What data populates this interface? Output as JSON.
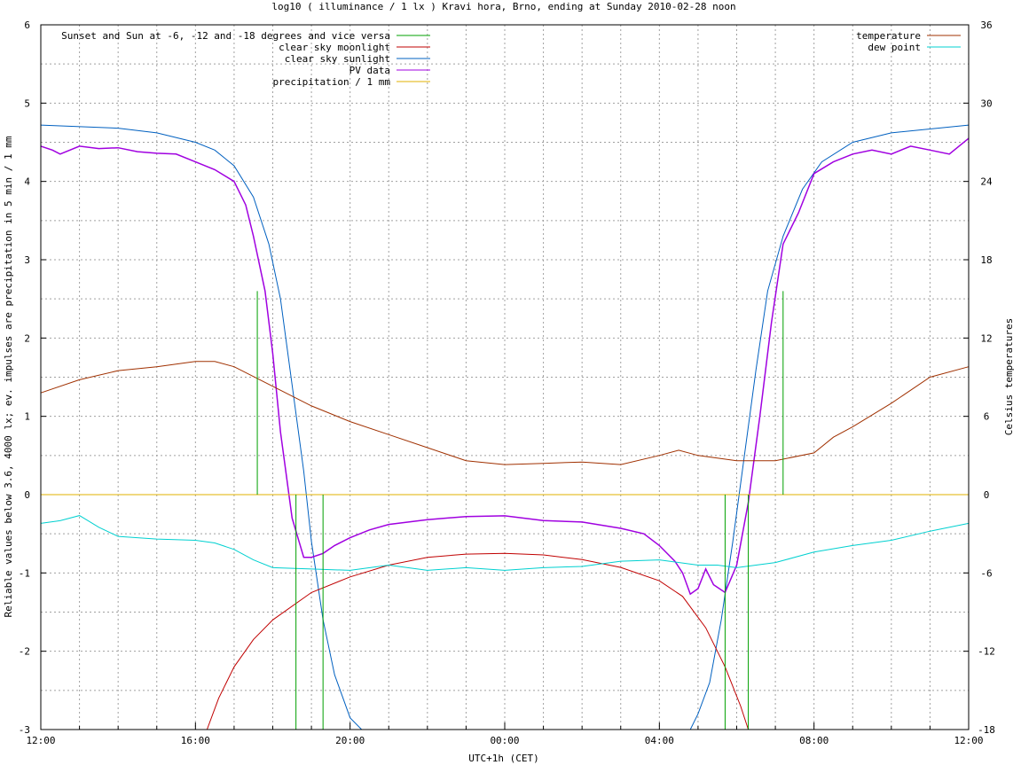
{
  "chart_data": {
    "type": "line",
    "title": "log10 ( illuminance / 1 lx ) Kravi hora, Brno, ending at Sunday 2010-02-28 noon",
    "xlabel": "UTC+1h (CET)",
    "ylabel": "Reliable values below 3.6, 4000 lx; ev. impulses are precipitation in 5 min / 1 mm",
    "y2label": "Celsius temperatures",
    "x_unit": "hours from 12:00",
    "xlim": [
      0,
      24
    ],
    "ylim": [
      -3,
      6
    ],
    "y2lim": [
      -18,
      36
    ],
    "x_ticks": [
      {
        "x": 0,
        "label": "12:00"
      },
      {
        "x": 4,
        "label": "16:00"
      },
      {
        "x": 8,
        "label": "20:00"
      },
      {
        "x": 12,
        "label": "00:00"
      },
      {
        "x": 16,
        "label": "04:00"
      },
      {
        "x": 20,
        "label": "08:00"
      },
      {
        "x": 24,
        "label": "12:00"
      }
    ],
    "y_ticks": [
      "-3",
      "-2",
      "-1",
      "0",
      "1",
      "2",
      "3",
      "4",
      "5",
      "6"
    ],
    "y2_ticks": [
      "-18",
      "-12",
      "-6",
      "0",
      "6",
      "12",
      "18",
      "24",
      "30",
      "36"
    ],
    "grid": true,
    "legend_left": [
      {
        "name": "Sunset and Sun at -6, -12 and -18 degrees and vice versa",
        "color": "#00a000"
      },
      {
        "name": "clear sky moonlight",
        "color": "#c00000"
      },
      {
        "name": "clear sky sunlight",
        "color": "#0060c0"
      },
      {
        "name": "PV data",
        "color": "#a000e0"
      },
      {
        "name": "precipitation / 1 mm",
        "color": "#e0b000"
      }
    ],
    "legend_right": [
      {
        "name": "temperature",
        "color": "#a03000"
      },
      {
        "name": "dew point",
        "color": "#00d0d0"
      }
    ],
    "series": [
      {
        "name": "clear sky sunlight",
        "axis": "left",
        "color": "#0060c0",
        "x": [
          0,
          2,
          3,
          4,
          4.5,
          5,
          5.5,
          5.9,
          6.2,
          6.5,
          6.8,
          7.0,
          7.3,
          7.6,
          8.0,
          8.3,
          16.8,
          17.0,
          17.3,
          17.6,
          17.9,
          18.2,
          18.5,
          18.8,
          19.2,
          19.7,
          20.2,
          21,
          22,
          24
        ],
        "y": [
          4.72,
          4.68,
          4.62,
          4.5,
          4.4,
          4.2,
          3.8,
          3.2,
          2.5,
          1.4,
          0.3,
          -0.6,
          -1.6,
          -2.3,
          -2.85,
          -3.0,
          -3.0,
          -2.8,
          -2.4,
          -1.6,
          -0.6,
          0.5,
          1.6,
          2.6,
          3.3,
          3.9,
          4.25,
          4.5,
          4.62,
          4.72
        ]
      },
      {
        "name": "clear sky moonlight",
        "axis": "left",
        "color": "#c00000",
        "x": [
          4.3,
          4.6,
          5,
          5.5,
          6,
          7,
          8,
          9,
          10,
          11,
          12,
          13,
          14,
          15,
          16,
          16.6,
          17.2,
          17.7,
          18.1,
          18.3
        ],
        "y": [
          -3.0,
          -2.6,
          -2.2,
          -1.85,
          -1.6,
          -1.25,
          -1.05,
          -0.9,
          -0.8,
          -0.76,
          -0.75,
          -0.77,
          -0.83,
          -0.93,
          -1.1,
          -1.3,
          -1.7,
          -2.2,
          -2.7,
          -3.0
        ]
      },
      {
        "name": "PV data",
        "axis": "left",
        "color": "#a000e0",
        "x": [
          0,
          0.3,
          0.5,
          1,
          1.5,
          2,
          2.5,
          3,
          3.5,
          4,
          4.5,
          5,
          5.3,
          5.5,
          5.8,
          6.0,
          6.2,
          6.5,
          6.8,
          7.0,
          7.3,
          7.6,
          8,
          8.5,
          9,
          10,
          11,
          12,
          13,
          14,
          15,
          15.6,
          16,
          16.4,
          16.6,
          16.8,
          17,
          17.2,
          17.4,
          17.7,
          18,
          18.3,
          18.6,
          18.9,
          19.2,
          19.6,
          20,
          20.5,
          21,
          21.5,
          22,
          22.5,
          23,
          23.5,
          24
        ],
        "y": [
          4.45,
          4.4,
          4.35,
          4.45,
          4.42,
          4.43,
          4.38,
          4.36,
          4.35,
          4.25,
          4.15,
          4.0,
          3.7,
          3.3,
          2.6,
          1.8,
          0.8,
          -0.3,
          -0.8,
          -0.8,
          -0.75,
          -0.65,
          -0.55,
          -0.45,
          -0.38,
          -0.32,
          -0.28,
          -0.27,
          -0.33,
          -0.35,
          -0.43,
          -0.5,
          -0.65,
          -0.85,
          -1.0,
          -1.27,
          -1.2,
          -0.95,
          -1.15,
          -1.25,
          -0.9,
          -0.1,
          1.0,
          2.2,
          3.2,
          3.6,
          4.1,
          4.25,
          4.35,
          4.4,
          4.35,
          4.45,
          4.4,
          4.35,
          4.55
        ]
      },
      {
        "name": "precipitation / 1 mm",
        "axis": "left",
        "color": "#e0b000",
        "x": [
          0,
          24
        ],
        "y": [
          0,
          0
        ]
      },
      {
        "name": "temperature",
        "axis": "right",
        "color": "#a03000",
        "x": [
          0,
          1,
          2,
          3,
          4,
          4.5,
          5,
          6,
          7,
          8,
          9,
          10,
          11,
          12,
          13,
          14,
          15,
          16,
          16.5,
          17,
          18,
          19,
          20,
          20.5,
          21,
          22,
          23,
          24
        ],
        "y": [
          7.8,
          8.8,
          9.5,
          9.8,
          10.2,
          10.2,
          9.8,
          8.3,
          6.8,
          5.6,
          4.6,
          3.6,
          2.6,
          2.3,
          2.4,
          2.5,
          2.3,
          3.0,
          3.4,
          3.0,
          2.6,
          2.6,
          3.2,
          4.4,
          5.2,
          7.0,
          9.0,
          9.8
        ]
      },
      {
        "name": "dew point",
        "axis": "right",
        "color": "#00d0d0",
        "x": [
          0,
          0.5,
          1,
          1.5,
          2,
          3,
          4,
          4.5,
          5,
          5.5,
          6,
          7,
          8,
          9,
          10,
          11,
          12,
          13,
          14,
          15,
          16,
          17,
          17.5,
          18,
          19,
          20,
          21,
          22,
          23,
          24
        ],
        "y": [
          -2.2,
          -2.0,
          -1.6,
          -2.5,
          -3.2,
          -3.4,
          -3.5,
          -3.7,
          -4.2,
          -5.0,
          -5.6,
          -5.7,
          -5.8,
          -5.4,
          -5.8,
          -5.6,
          -5.8,
          -5.6,
          -5.5,
          -5.1,
          -5.0,
          -5.4,
          -5.4,
          -5.6,
          -5.2,
          -4.4,
          -3.9,
          -3.5,
          -2.8,
          -2.2
        ]
      }
    ],
    "vertical_markers": {
      "color": "#00a000",
      "lines": [
        {
          "x": 5.6,
          "y_top": 2.6,
          "y_bottom": 0
        },
        {
          "x": 6.6,
          "y_top": 0,
          "y_bottom": -3
        },
        {
          "x": 7.3,
          "y_top": 0,
          "y_bottom": -3
        },
        {
          "x": 17.7,
          "y_top": 0,
          "y_bottom": -3
        },
        {
          "x": 18.3,
          "y_top": 0,
          "y_bottom": -3
        },
        {
          "x": 19.2,
          "y_top": 2.6,
          "y_bottom": 0
        }
      ]
    }
  }
}
